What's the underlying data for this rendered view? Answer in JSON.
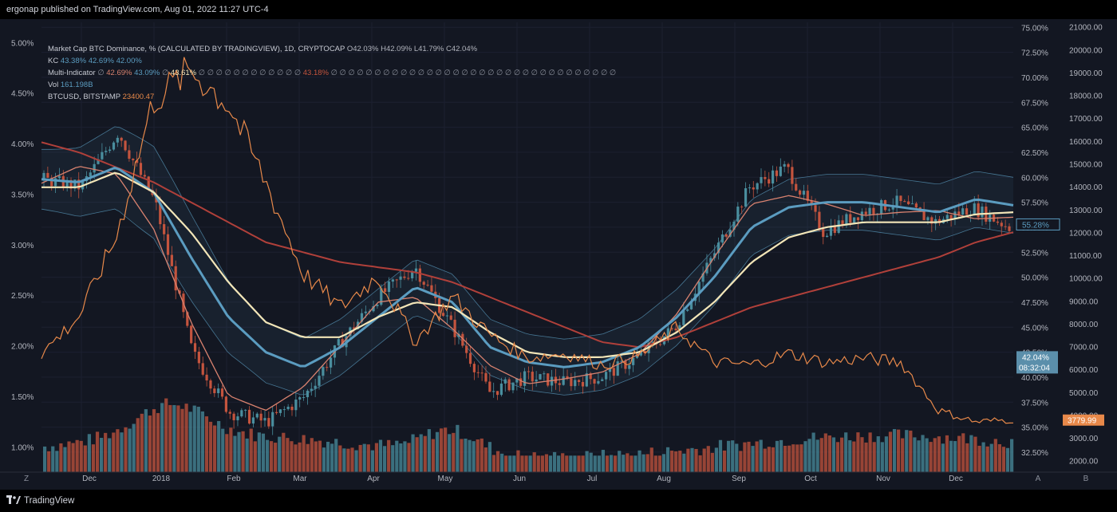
{
  "header": {
    "published": "ergonap published on TradingView.com, Aug 01, 2022 11:27 UTC-4"
  },
  "footer": {
    "logo_icon": "tradingview-logo-icon",
    "brand": "TradingView"
  },
  "legend": {
    "line1_title": "Market Cap BTC Dominance, % (CALCULATED BY TRADINGVIEW), 1D, CRYPTOCAP",
    "line1_o": "O42.03%",
    "line1_h": "H42.09%",
    "line1_l": "L41.79%",
    "line1_c": "C42.04%",
    "kc_label": "KC",
    "kc_v1": "43.38%",
    "kc_v2": "42.69%",
    "kc_v3": "42.00%",
    "mi_label": "Multi-Indicator",
    "mi_v1": "42.69%",
    "mi_v2": "43.09%",
    "mi_v3": "43.61%",
    "mi_zeros": "∅ ∅ ∅ ∅ ∅ ∅ ∅ ∅ ∅ ∅ ∅ ∅",
    "mi_v4": "43.18%",
    "mi_zeros2": "∅ ∅ ∅ ∅ ∅ ∅ ∅ ∅ ∅ ∅ ∅ ∅ ∅ ∅ ∅ ∅ ∅ ∅ ∅ ∅ ∅ ∅ ∅ ∅ ∅ ∅ ∅ ∅ ∅ ∅ ∅ ∅ ∅",
    "vol_label": "Vol",
    "vol_v": "161.198B",
    "btc_label": "BTCUSD, BITSTAMP",
    "btc_v": "23400.47"
  },
  "axes": {
    "left_ticks": [
      "5.00%",
      "4.50%",
      "4.00%",
      "3.50%",
      "3.00%",
      "2.50%",
      "2.00%",
      "1.50%",
      "1.00%"
    ],
    "mid_ticks": [
      "75.00%",
      "72.50%",
      "70.00%",
      "67.50%",
      "65.00%",
      "62.50%",
      "60.00%",
      "57.50%",
      "55.00%",
      "52.50%",
      "50.00%",
      "47.50%",
      "45.00%",
      "42.50%",
      "40.00%",
      "37.50%",
      "35.00%",
      "32.50%"
    ],
    "right_ticks": [
      "21000.00",
      "20000.00",
      "19000.00",
      "18000.00",
      "17000.00",
      "16000.00",
      "15000.00",
      "14000.00",
      "13000.00",
      "12000.00",
      "11000.00",
      "10000.00",
      "9000.00",
      "8000.00",
      "7000.00",
      "6000.00",
      "5000.00",
      "4000.00",
      "3000.00",
      "2000.00"
    ],
    "x_ticks": [
      "Dec",
      "2018",
      "Feb",
      "Mar",
      "Apr",
      "May",
      "Jun",
      "Jul",
      "Aug",
      "Sep",
      "Oct",
      "Nov",
      "Dec"
    ],
    "bottom_left_btn": "Z",
    "bottom_auto_btn": "A",
    "bottom_b_btn": "B"
  },
  "price_tags": {
    "ma_tag": "55.28%",
    "last_price": "42.04%",
    "countdown": "08:32:04",
    "btc_tag": "3779.99"
  },
  "colors": {
    "bg": "#131722",
    "cyan": "#5b9cc0",
    "salmon": "#d9826f",
    "cream": "#f3e6b8",
    "darkred": "#b0403a",
    "orange": "#e8894a",
    "up": "#4a8e9e",
    "down": "#c4543e"
  },
  "chart_data": {
    "type": "line",
    "title": "Market Cap BTC Dominance, % (CALCULATED BY TRADINGVIEW), 1D, CRYPTOCAP",
    "x": [
      "Nov",
      "Dec",
      "Dec",
      "2018",
      "Jan",
      "Feb",
      "Feb",
      "Mar",
      "Mar",
      "Apr",
      "Apr",
      "May",
      "May",
      "Jun",
      "Jun",
      "Jul",
      "Jul",
      "Aug",
      "Aug",
      "Sep",
      "Sep",
      "Oct",
      "Oct",
      "Nov",
      "Nov",
      "Dec",
      "Dec"
    ],
    "series": [
      {
        "values": [
          59.8,
          59.0,
          64.5,
          57.5,
          42.5,
          36.5,
          35.5,
          38.0,
          43.5,
          48.0,
          51.0,
          45.0,
          38.5,
          40.0,
          39.5,
          40.0,
          42.0,
          45.0,
          52.0,
          59.0,
          61.0,
          54.5,
          56.5,
          57.5,
          55.5,
          57.0,
          55.0
        ]
      },
      {
        "values": [
          59.8,
          59.5,
          61.0,
          58.5,
          52.0,
          46.0,
          42.5,
          41.0,
          43.0,
          46.0,
          49.0,
          47.5,
          43.0,
          41.5,
          41.0,
          41.5,
          43.0,
          46.0,
          50.0,
          55.0,
          57.0,
          57.5,
          57.5,
          57.0,
          56.5,
          57.8,
          57.2
        ]
      },
      {
        "values": [
          59.0,
          59.0,
          60.5,
          58.5,
          54.5,
          49.5,
          45.5,
          44.0,
          44.0,
          46.0,
          47.5,
          47.0,
          44.5,
          42.5,
          42.0,
          42.0,
          42.5,
          44.5,
          47.5,
          51.5,
          54.0,
          55.0,
          55.5,
          55.5,
          55.5,
          56.3,
          56.5
        ]
      },
      {
        "values": [
          63.5,
          62.5,
          61.0,
          59.5,
          57.5,
          55.5,
          53.5,
          52.5,
          51.5,
          51.0,
          50.5,
          49.5,
          48.0,
          46.5,
          45.0,
          43.5,
          43.0,
          44.0,
          45.5,
          47.0,
          48.0,
          49.0,
          50.0,
          51.0,
          52.0,
          53.5,
          54.5
        ]
      },
      {
        "values": [
          6700,
          8300,
          11800,
          17800,
          19100,
          17600,
          14200,
          10200,
          8700,
          10100,
          7200,
          9200,
          7500,
          6500,
          6700,
          6200,
          6600,
          7800,
          6300,
          6200,
          6700,
          6300,
          6500,
          6300,
          4200,
          3700,
          3800
        ]
      }
    ],
    "ylim_left": [
      0.75,
      5.2
    ],
    "ylim_mid": [
      30.5,
      75.5
    ],
    "ylim_right": [
      1500,
      21200
    ]
  }
}
